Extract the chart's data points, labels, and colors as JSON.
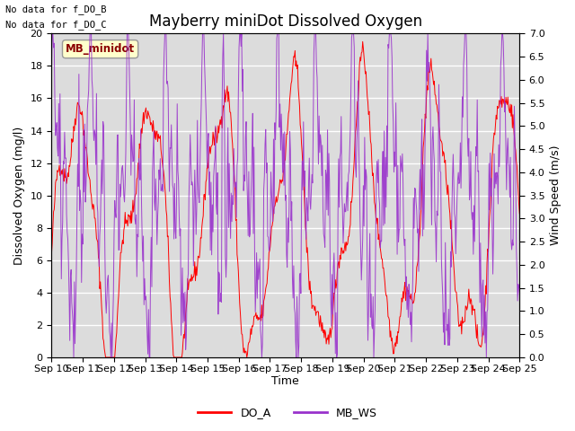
{
  "title": "Mayberry miniDot Dissolved Oxygen",
  "xlabel": "Time",
  "ylabel_left": "Dissolved Oxygen (mg/l)",
  "ylabel_right": "Wind Speed (m/s)",
  "top_text": [
    "No data for f_DO_B",
    "No data for f_DO_C"
  ],
  "legend_box_label": "MB_minidot",
  "legend_entries": [
    "DO_A",
    "MB_WS"
  ],
  "line_colors": [
    "red",
    "#9932CC"
  ],
  "ylim_left": [
    0,
    20
  ],
  "ylim_right": [
    0.0,
    7.0
  ],
  "yticks_left": [
    0,
    2,
    4,
    6,
    8,
    10,
    12,
    14,
    16,
    18,
    20
  ],
  "yticks_right": [
    0.0,
    0.5,
    1.0,
    1.5,
    2.0,
    2.5,
    3.0,
    3.5,
    4.0,
    4.5,
    5.0,
    5.5,
    6.0,
    6.5,
    7.0
  ],
  "xticklabels": [
    "Sep 10",
    "Sep 11",
    "Sep 12",
    "Sep 13",
    "Sep 14",
    "Sep 15",
    "Sep 16",
    "Sep 17",
    "Sep 18",
    "Sep 19",
    "Sep 20",
    "Sep 21",
    "Sep 22",
    "Sep 23",
    "Sep 24",
    "Sep 25"
  ],
  "plot_bg_color": "#dcdcdc",
  "grid_color": "white",
  "title_fontsize": 12,
  "axis_fontsize": 9,
  "tick_fontsize": 8,
  "legend_box_facecolor": "#ffffcc",
  "legend_box_edgecolor": "#999999",
  "n_days": 15,
  "seed": 42
}
